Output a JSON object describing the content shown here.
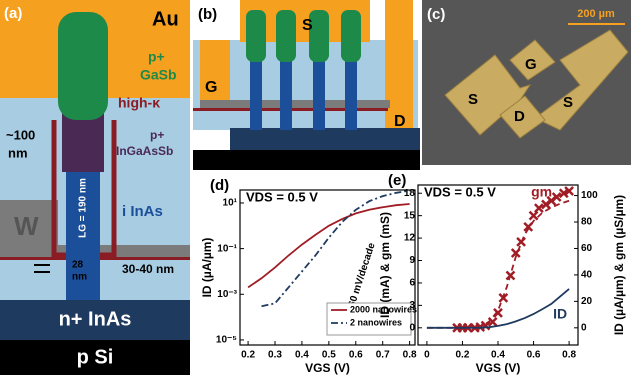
{
  "diagram_a": {
    "label": "(a)",
    "texts": [
      "Au",
      "p+",
      "GaSb",
      "high-κ",
      "~100",
      "nm",
      "p+",
      "InGaAsSb",
      "W",
      "i InAs",
      "LG = 190 nm",
      "28",
      "nm",
      "30-40 nm",
      "n+ InAs",
      "p Si"
    ]
  },
  "diagram_b": {
    "label": "(b)",
    "texts": [
      "S",
      "G",
      "D"
    ]
  },
  "photo_c": {
    "label": "(c)",
    "scale_bar": "200 µm",
    "texts": [
      "S",
      "G",
      "D",
      "S"
    ]
  },
  "chart_data": [
    {
      "type": "line",
      "panel": "(d)",
      "annotation": "VDS = 0.5 V",
      "slope_label": "60 mV/decade",
      "x_label": "VGS (V)",
      "y_label": "ID (µA/µm)",
      "log_y": true,
      "legend": "lower right",
      "xlim": [
        0.17,
        0.82
      ],
      "xticks": [
        0.2,
        0.3,
        0.4,
        0.5,
        0.6,
        0.7,
        0.8
      ],
      "ylim": [
        6e-06,
        37
      ],
      "yticks": [
        {
          "value": 10,
          "label": "10¹"
        },
        {
          "value": 0.1,
          "label": "10⁻¹"
        },
        {
          "value": 0.001,
          "label": "10⁻³"
        },
        {
          "value": 1e-05,
          "label": "10⁻⁵"
        }
      ],
      "x": [
        0.2,
        0.25,
        0.3,
        0.35,
        0.4,
        0.45,
        0.5,
        0.55,
        0.6,
        0.65,
        0.7,
        0.75,
        0.8
      ],
      "series": [
        {
          "name": "2000 nanowires",
          "color": "#a01d26",
          "style": "solid",
          "values": [
            0.002,
            0.005,
            0.015,
            0.05,
            0.15,
            0.4,
            1,
            2,
            3.5,
            5,
            6.5,
            8,
            9
          ]
        },
        {
          "name": "2 nanowires",
          "color": "#1f3a5f",
          "style": "dashdot",
          "values": [
            null,
            0.0003,
            0.0004,
            0.002,
            0.01,
            0.05,
            0.3,
            1.5,
            5,
            12,
            20,
            28,
            35
          ]
        }
      ]
    },
    {
      "type": "line",
      "panel": "(e)",
      "annotation": "VDS = 0.5 V",
      "x_label": "VGS (V)",
      "y_label": "ID (mA) & gm (mS)",
      "y2_label": "ID (µA/µm) & gm (µS/µm)",
      "legend": "inline",
      "xlim": [
        -0.05,
        0.85
      ],
      "xticks": [
        0,
        0.2,
        0.4,
        0.6,
        0.8
      ],
      "ylim": [
        -2.3,
        19.1
      ],
      "yticks": [
        0,
        3,
        6,
        9,
        12,
        15,
        18
      ],
      "y2lim": [
        -13,
        108
      ],
      "y2ticks": [
        0,
        20,
        40,
        60,
        80,
        100
      ],
      "series": [
        {
          "name": "gm",
          "color": "#a01d26",
          "style": "cross",
          "x": [
            0.17,
            0.2,
            0.23,
            0.27,
            0.3,
            0.33,
            0.37,
            0.4,
            0.43,
            0.47,
            0.5,
            0.53,
            0.57,
            0.6,
            0.63,
            0.67,
            0.7,
            0.73,
            0.77,
            0.8
          ],
          "values": [
            0,
            0,
            0,
            0,
            0.1,
            0.3,
            0.8,
            2,
            4,
            7,
            10,
            11.5,
            13.5,
            15,
            16,
            16.5,
            17,
            17.5,
            18,
            18.3
          ]
        },
        {
          "color": "#a01d26",
          "style": "dashed",
          "x": [
            0,
            0.1,
            0.2,
            0.3,
            0.35,
            0.4,
            0.45,
            0.5,
            0.55,
            0.6,
            0.65,
            0.7,
            0.75,
            0.8
          ],
          "values": [
            0,
            0,
            0,
            0.2,
            0.8,
            2.3,
            5.5,
            9.5,
            12.5,
            14.3,
            15.4,
            16.1,
            16.6,
            17
          ]
        },
        {
          "name": "ID",
          "color": "#1f3a5f",
          "style": "solid",
          "x": [
            0,
            0.1,
            0.2,
            0.3,
            0.35,
            0.4,
            0.45,
            0.5,
            0.55,
            0.6,
            0.65,
            0.7,
            0.75,
            0.8
          ],
          "values": [
            0,
            0,
            0,
            0.02,
            0.08,
            0.25,
            0.5,
            0.85,
            1.3,
            1.85,
            2.5,
            3.2,
            4.2,
            5.2
          ]
        }
      ]
    }
  ]
}
